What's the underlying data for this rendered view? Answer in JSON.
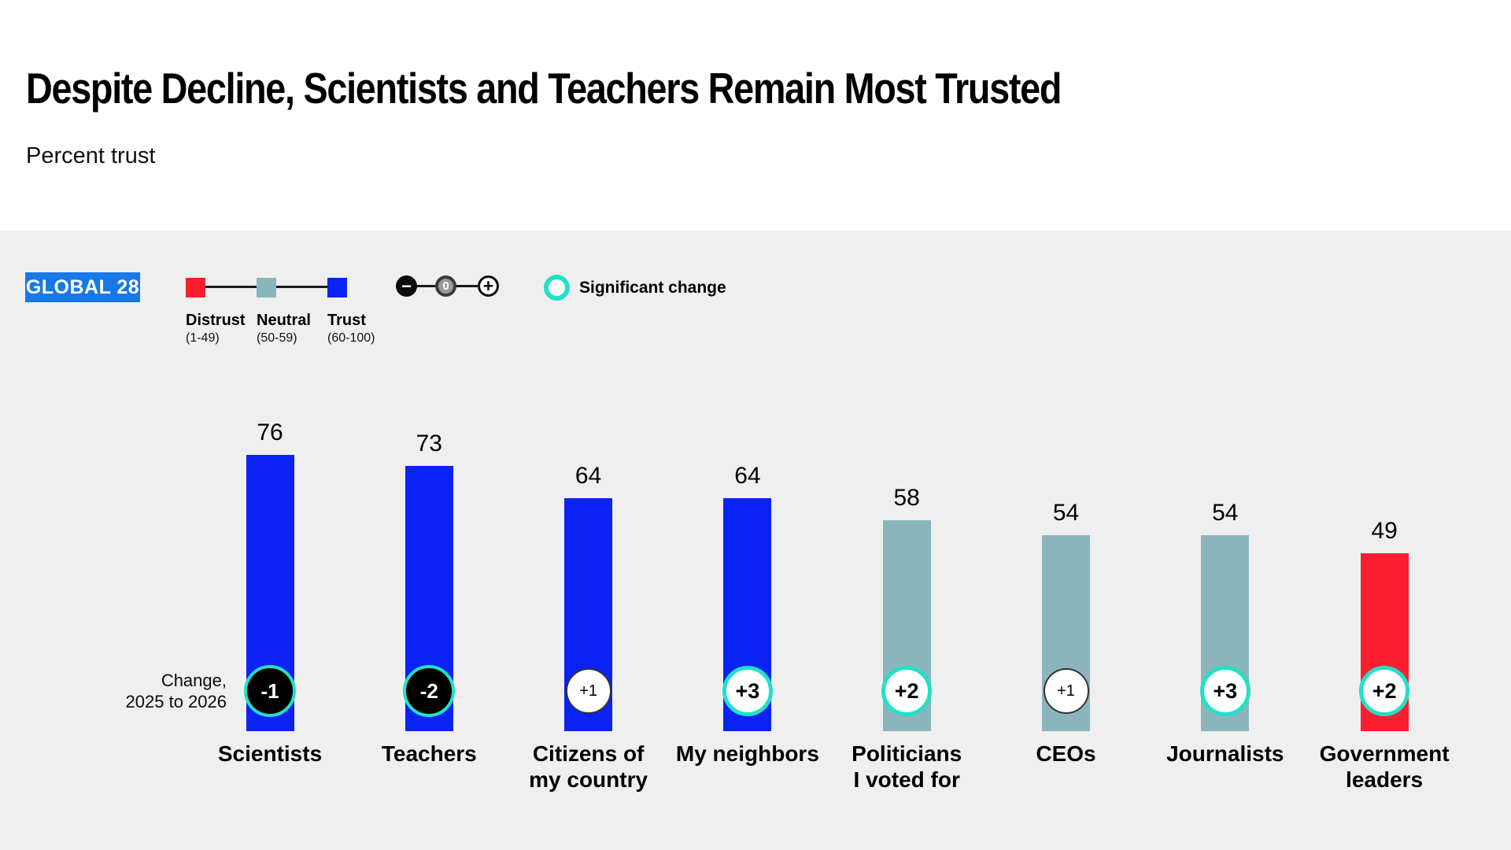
{
  "header": {
    "title": "Despite Decline, Scientists and Teachers Remain Most Trusted",
    "subtitle": "Percent trust"
  },
  "legend": {
    "global_badge": "GLOBAL 28",
    "scale": [
      {
        "label": "Distrust",
        "range": "(1-49)",
        "color": "#FA1E30"
      },
      {
        "label": "Neutral",
        "range": "(50-59)",
        "color": "#8AB5BC"
      },
      {
        "label": "Trust",
        "range": "(60-100)",
        "color": "#0B22F5"
      }
    ],
    "slider": {
      "minus": "−",
      "zero": "0",
      "plus": "+"
    },
    "significant_label": "Significant change"
  },
  "chart_data": {
    "type": "bar",
    "title": "Despite Decline, Scientists and Teachers Remain Most Trusted",
    "ylabel": "Percent trust",
    "ylim": [
      0,
      100
    ],
    "grid": false,
    "categories": [
      "Scientists",
      "Teachers",
      "Citizens of\nmy country",
      "My neighbors",
      "Politicians\nI voted for",
      "CEOs",
      "Journalists",
      "Government\nleaders"
    ],
    "values": [
      76,
      73,
      64,
      64,
      58,
      54,
      54,
      49
    ],
    "changes": [
      "-1",
      "-2",
      "+1",
      "+3",
      "+2",
      "+1",
      "+3",
      "+2"
    ],
    "change_significant": [
      true,
      true,
      false,
      true,
      true,
      false,
      true,
      true
    ],
    "change_note": "Change,\n2025 to 2026",
    "bands": {
      "distrust_max": 49,
      "neutral_max": 59
    },
    "colors": {
      "trust": "#0B22F5",
      "neutral": "#8AB5BC",
      "distrust": "#FA1E30",
      "significant": "#21E1C7",
      "background": "#F0EFEF"
    }
  }
}
